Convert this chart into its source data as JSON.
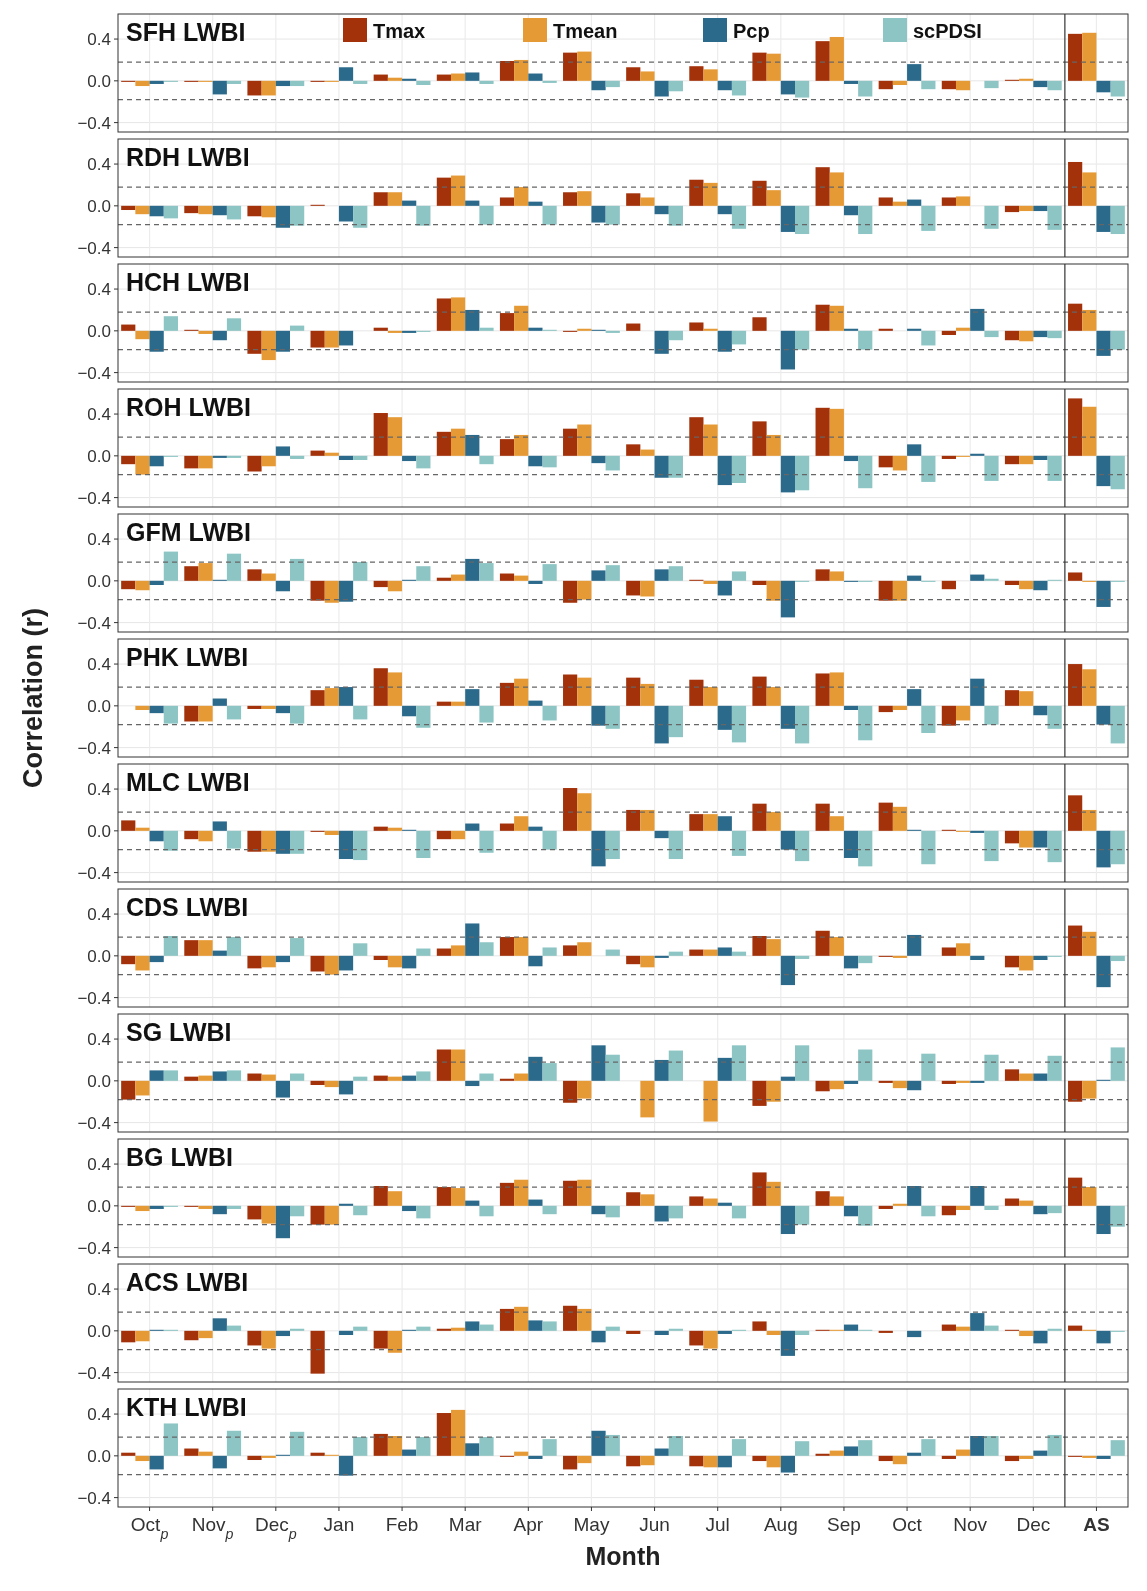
{
  "chart_data": [
    {
      "type": "bar",
      "title": "SFH LWBI",
      "legend": "top",
      "tick_labels": "y",
      "grid": true,
      "ylim": [
        -0.49,
        0.64
      ],
      "yticks": [
        {
          "value": -0.4,
          "label": "−0.4"
        },
        {
          "value": 0,
          "label": "0.0"
        },
        {
          "value": 0.4,
          "label": "0.4"
        }
      ],
      "categories": [
        "Oct$_{p}$",
        "Nov$_{p}$",
        "Dec$_{p}$",
        "Jan",
        "Feb",
        "Mar",
        "Apr",
        "May",
        "Jun",
        "Jul",
        "Aug",
        "Sep",
        "Oct",
        "Nov",
        "Dec",
        "AS"
      ],
      "ref_lines": [
        {
          "axis": "y",
          "value": 0.18,
          "line_style": "dashed"
        },
        {
          "axis": "y",
          "value": -0.18,
          "line_style": "dashed"
        },
        {
          "axis": "x",
          "value": "AS",
          "line_style": "solid"
        }
      ],
      "series": [
        {
          "name": "Tmax",
          "color": "#a3320b",
          "values": [
            -0.01,
            -0.01,
            -0.14,
            -0.01,
            0.06,
            0.06,
            0.19,
            0.27,
            0.13,
            0.14,
            0.27,
            0.38,
            -0.08,
            -0.08,
            0.01,
            0.45
          ]
        },
        {
          "name": "Tmean",
          "color": "#e69a35",
          "values": [
            -0.05,
            -0.01,
            -0.14,
            -0.01,
            0.03,
            0.07,
            0.2,
            0.28,
            0.09,
            0.11,
            0.26,
            0.42,
            -0.04,
            -0.09,
            0.02,
            0.46
          ]
        },
        {
          "name": "Pcp",
          "color": "#2c6a8c",
          "values": [
            -0.03,
            -0.13,
            -0.05,
            0.13,
            0.02,
            0.08,
            0.07,
            -0.09,
            -0.15,
            -0.09,
            -0.13,
            -0.03,
            0.16,
            0.0,
            -0.06,
            -0.11
          ]
        },
        {
          "name": "scPDSI",
          "color": "#8cc5c4",
          "values": [
            -0.01,
            -0.03,
            -0.05,
            -0.03,
            -0.04,
            -0.03,
            -0.02,
            -0.06,
            -0.1,
            -0.14,
            -0.16,
            -0.15,
            -0.08,
            -0.07,
            -0.09,
            -0.15
          ]
        }
      ]
    },
    {
      "type": "bar",
      "title": "RDH LWBI",
      "tick_labels": "y",
      "grid": true,
      "ylim": [
        -0.49,
        0.64
      ],
      "yticks": [
        {
          "value": -0.4,
          "label": "−0.4"
        },
        {
          "value": 0,
          "label": "0.0"
        },
        {
          "value": 0.4,
          "label": "0.4"
        }
      ],
      "categories": [
        "Oct$_{p}$",
        "Nov$_{p}$",
        "Dec$_{p}$",
        "Jan",
        "Feb",
        "Mar",
        "Apr",
        "May",
        "Jun",
        "Jul",
        "Aug",
        "Sep",
        "Oct",
        "Nov",
        "Dec",
        "AS"
      ],
      "ref_lines": [
        {
          "axis": "y",
          "value": 0.18,
          "line_style": "dashed"
        },
        {
          "axis": "y",
          "value": -0.18,
          "line_style": "dashed"
        },
        {
          "axis": "x",
          "value": "AS",
          "line_style": "solid"
        }
      ],
      "series": [
        {
          "color": "#a3320b",
          "values": [
            -0.04,
            -0.07,
            -0.1,
            0.01,
            0.13,
            0.27,
            0.08,
            0.13,
            0.12,
            0.25,
            0.24,
            0.37,
            0.08,
            0.08,
            -0.06,
            0.42
          ]
        },
        {
          "color": "#e69a35",
          "values": [
            -0.08,
            -0.08,
            -0.11,
            0.0,
            0.13,
            0.29,
            0.18,
            0.14,
            0.08,
            0.22,
            0.15,
            0.32,
            0.04,
            0.09,
            -0.05,
            0.32
          ]
        },
        {
          "color": "#2c6a8c",
          "values": [
            -0.1,
            -0.09,
            -0.21,
            -0.15,
            0.05,
            0.05,
            0.04,
            -0.16,
            -0.08,
            -0.08,
            -0.25,
            -0.09,
            0.06,
            0.0,
            -0.05,
            -0.25
          ]
        },
        {
          "color": "#8cc5c4",
          "values": [
            -0.12,
            -0.13,
            -0.19,
            -0.21,
            -0.19,
            -0.18,
            -0.18,
            -0.18,
            -0.19,
            -0.22,
            -0.27,
            -0.27,
            -0.24,
            -0.22,
            -0.23,
            -0.27
          ]
        }
      ]
    },
    {
      "type": "bar",
      "title": "HCH LWBI",
      "tick_labels": "y",
      "grid": true,
      "ylim": [
        -0.49,
        0.64
      ],
      "yticks": [
        {
          "value": -0.4,
          "label": "−0.4"
        },
        {
          "value": 0,
          "label": "0.0"
        },
        {
          "value": 0.4,
          "label": "0.4"
        }
      ],
      "categories": [
        "Oct$_{p}$",
        "Nov$_{p}$",
        "Dec$_{p}$",
        "Jan",
        "Feb",
        "Mar",
        "Apr",
        "May",
        "Jun",
        "Jul",
        "Aug",
        "Sep",
        "Oct",
        "Nov",
        "Dec",
        "AS"
      ],
      "ref_lines": [
        {
          "axis": "y",
          "value": 0.18,
          "line_style": "dashed"
        },
        {
          "axis": "y",
          "value": -0.18,
          "line_style": "dashed"
        },
        {
          "axis": "x",
          "value": "AS",
          "line_style": "solid"
        }
      ],
      "series": [
        {
          "color": "#a3320b",
          "values": [
            0.06,
            0.01,
            -0.22,
            -0.16,
            0.03,
            0.31,
            0.17,
            -0.01,
            0.07,
            0.08,
            0.13,
            0.25,
            0.02,
            -0.04,
            -0.09,
            0.26
          ]
        },
        {
          "color": "#e69a35",
          "values": [
            -0.08,
            -0.03,
            -0.28,
            -0.16,
            -0.02,
            0.32,
            0.24,
            0.02,
            0.0,
            0.02,
            0.0,
            0.24,
            0.0,
            0.03,
            -0.1,
            0.2
          ]
        },
        {
          "color": "#2c6a8c",
          "values": [
            -0.2,
            -0.09,
            -0.2,
            -0.14,
            -0.02,
            0.2,
            0.03,
            0.01,
            -0.22,
            -0.2,
            -0.37,
            0.02,
            0.02,
            0.21,
            -0.06,
            -0.24
          ]
        },
        {
          "color": "#8cc5c4",
          "values": [
            0.14,
            0.12,
            0.05,
            0.0,
            -0.01,
            0.03,
            0.01,
            -0.02,
            -0.09,
            -0.13,
            -0.18,
            -0.18,
            -0.14,
            -0.06,
            -0.07,
            -0.18
          ]
        }
      ]
    },
    {
      "type": "bar",
      "title": "ROH LWBI",
      "tick_labels": "y",
      "grid": true,
      "ylim": [
        -0.49,
        0.64
      ],
      "yticks": [
        {
          "value": -0.4,
          "label": "−0.4"
        },
        {
          "value": 0,
          "label": "0.0"
        },
        {
          "value": 0.4,
          "label": "0.4"
        }
      ],
      "categories": [
        "Oct$_{p}$",
        "Nov$_{p}$",
        "Dec$_{p}$",
        "Jan",
        "Feb",
        "Mar",
        "Apr",
        "May",
        "Jun",
        "Jul",
        "Aug",
        "Sep",
        "Oct",
        "Nov",
        "Dec",
        "AS"
      ],
      "ref_lines": [
        {
          "axis": "y",
          "value": 0.18,
          "line_style": "dashed"
        },
        {
          "axis": "y",
          "value": -0.18,
          "line_style": "dashed"
        },
        {
          "axis": "x",
          "value": "AS",
          "line_style": "solid"
        }
      ],
      "series": [
        {
          "color": "#a3320b",
          "values": [
            -0.08,
            -0.12,
            -0.15,
            0.05,
            0.41,
            0.23,
            0.16,
            0.26,
            0.11,
            0.37,
            0.33,
            0.46,
            -0.11,
            -0.03,
            -0.08,
            0.55
          ]
        },
        {
          "color": "#e69a35",
          "values": [
            -0.18,
            -0.12,
            -0.1,
            0.03,
            0.37,
            0.26,
            0.2,
            0.3,
            0.06,
            0.3,
            0.2,
            0.45,
            -0.14,
            -0.01,
            -0.08,
            0.47
          ]
        },
        {
          "color": "#2c6a8c",
          "values": [
            -0.1,
            -0.02,
            0.09,
            -0.04,
            -0.05,
            0.2,
            -0.1,
            -0.07,
            -0.21,
            -0.28,
            -0.35,
            -0.05,
            0.11,
            0.02,
            -0.04,
            -0.29
          ]
        },
        {
          "color": "#8cc5c4",
          "values": [
            -0.01,
            -0.02,
            -0.03,
            -0.04,
            -0.12,
            -0.08,
            -0.11,
            -0.14,
            -0.21,
            -0.26,
            -0.33,
            -0.31,
            -0.25,
            -0.24,
            -0.24,
            -0.32
          ]
        }
      ]
    },
    {
      "type": "bar",
      "title": "GFM LWBI",
      "tick_labels": "y",
      "grid": true,
      "ylim": [
        -0.49,
        0.64
      ],
      "yticks": [
        {
          "value": -0.4,
          "label": "−0.4"
        },
        {
          "value": 0,
          "label": "0.0"
        },
        {
          "value": 0.4,
          "label": "0.4"
        }
      ],
      "categories": [
        "Oct$_{p}$",
        "Nov$_{p}$",
        "Dec$_{p}$",
        "Jan",
        "Feb",
        "Mar",
        "Apr",
        "May",
        "Jun",
        "Jul",
        "Aug",
        "Sep",
        "Oct",
        "Nov",
        "Dec",
        "AS"
      ],
      "ref_lines": [
        {
          "axis": "y",
          "value": 0.18,
          "line_style": "dashed"
        },
        {
          "axis": "y",
          "value": -0.18,
          "line_style": "dashed"
        },
        {
          "axis": "x",
          "value": "AS",
          "line_style": "solid"
        }
      ],
      "series": [
        {
          "color": "#a3320b",
          "values": [
            -0.08,
            0.14,
            0.11,
            -0.19,
            -0.06,
            0.03,
            0.07,
            -0.21,
            -0.14,
            0.01,
            -0.04,
            0.11,
            -0.19,
            -0.08,
            -0.04,
            0.08
          ]
        },
        {
          "color": "#e69a35",
          "values": [
            -0.09,
            0.17,
            0.07,
            -0.21,
            -0.1,
            0.06,
            0.05,
            -0.18,
            -0.15,
            -0.03,
            -0.19,
            0.09,
            -0.19,
            0.0,
            -0.08,
            -0.01
          ]
        },
        {
          "color": "#2c6a8c",
          "values": [
            -0.04,
            0.01,
            -0.1,
            -0.2,
            0.01,
            0.21,
            -0.03,
            0.1,
            0.11,
            -0.14,
            -0.35,
            -0.01,
            0.05,
            0.06,
            -0.09,
            -0.25
          ]
        },
        {
          "color": "#8cc5c4",
          "values": [
            0.28,
            0.26,
            0.21,
            0.18,
            0.14,
            0.17,
            0.16,
            0.15,
            0.14,
            0.09,
            -0.01,
            -0.01,
            -0.01,
            0.02,
            0.01,
            -0.01
          ]
        }
      ]
    },
    {
      "type": "bar",
      "title": "PHK LWBI",
      "ylabel": "Correlation (r)",
      "tick_labels": "y",
      "grid": true,
      "ylim": [
        -0.49,
        0.64
      ],
      "yticks": [
        {
          "value": -0.4,
          "label": "−0.4"
        },
        {
          "value": 0,
          "label": "0.0"
        },
        {
          "value": 0.4,
          "label": "0.4"
        }
      ],
      "categories": [
        "Oct$_{p}$",
        "Nov$_{p}$",
        "Dec$_{p}$",
        "Jan",
        "Feb",
        "Mar",
        "Apr",
        "May",
        "Jun",
        "Jul",
        "Aug",
        "Sep",
        "Oct",
        "Nov",
        "Dec",
        "AS"
      ],
      "ref_lines": [
        {
          "axis": "y",
          "value": 0.18,
          "line_style": "dashed"
        },
        {
          "axis": "y",
          "value": -0.18,
          "line_style": "dashed"
        },
        {
          "axis": "x",
          "value": "AS",
          "line_style": "solid"
        }
      ],
      "series": [
        {
          "color": "#a3320b",
          "values": [
            0.0,
            -0.15,
            -0.03,
            0.15,
            0.36,
            0.04,
            0.22,
            0.3,
            0.27,
            0.25,
            0.28,
            0.31,
            -0.06,
            -0.19,
            0.15,
            0.4
          ]
        },
        {
          "color": "#e69a35",
          "values": [
            -0.04,
            -0.15,
            -0.03,
            0.17,
            0.32,
            0.04,
            0.26,
            0.27,
            0.21,
            0.18,
            0.18,
            0.32,
            -0.04,
            -0.14,
            0.14,
            0.35
          ]
        },
        {
          "color": "#2c6a8c",
          "values": [
            -0.07,
            0.07,
            -0.07,
            0.18,
            -0.1,
            0.16,
            0.05,
            -0.19,
            -0.36,
            -0.23,
            -0.22,
            -0.04,
            0.16,
            0.26,
            -0.09,
            -0.18
          ]
        },
        {
          "color": "#8cc5c4",
          "values": [
            -0.17,
            -0.13,
            -0.17,
            -0.13,
            -0.21,
            -0.16,
            -0.14,
            -0.22,
            -0.3,
            -0.35,
            -0.36,
            -0.33,
            -0.26,
            -0.18,
            -0.22,
            -0.36
          ]
        }
      ]
    },
    {
      "type": "bar",
      "title": "MLC LWBI",
      "tick_labels": "y",
      "grid": true,
      "ylim": [
        -0.49,
        0.64
      ],
      "yticks": [
        {
          "value": -0.4,
          "label": "−0.4"
        },
        {
          "value": 0,
          "label": "0.0"
        },
        {
          "value": 0.4,
          "label": "0.4"
        }
      ],
      "categories": [
        "Oct$_{p}$",
        "Nov$_{p}$",
        "Dec$_{p}$",
        "Jan",
        "Feb",
        "Mar",
        "Apr",
        "May",
        "Jun",
        "Jul",
        "Aug",
        "Sep",
        "Oct",
        "Nov",
        "Dec",
        "AS"
      ],
      "ref_lines": [
        {
          "axis": "y",
          "value": 0.18,
          "line_style": "dashed"
        },
        {
          "axis": "y",
          "value": -0.18,
          "line_style": "dashed"
        },
        {
          "axis": "x",
          "value": "AS",
          "line_style": "solid"
        }
      ],
      "series": [
        {
          "color": "#a3320b",
          "values": [
            0.1,
            -0.08,
            -0.2,
            -0.01,
            0.04,
            -0.08,
            0.07,
            0.41,
            0.2,
            0.16,
            0.26,
            0.26,
            0.27,
            0.01,
            -0.12,
            0.34
          ]
        },
        {
          "color": "#e69a35",
          "values": [
            0.03,
            -0.1,
            -0.2,
            -0.04,
            0.03,
            -0.08,
            0.14,
            0.36,
            0.2,
            0.16,
            0.18,
            0.14,
            0.23,
            -0.01,
            -0.16,
            0.2
          ]
        },
        {
          "color": "#2c6a8c",
          "values": [
            -0.1,
            0.09,
            -0.22,
            -0.27,
            0.01,
            0.07,
            0.04,
            -0.34,
            -0.07,
            0.14,
            -0.18,
            -0.26,
            0.01,
            -0.02,
            -0.16,
            -0.35
          ]
        },
        {
          "color": "#8cc5c4",
          "values": [
            -0.19,
            -0.17,
            -0.22,
            -0.28,
            -0.26,
            -0.21,
            -0.18,
            -0.27,
            -0.27,
            -0.24,
            -0.29,
            -0.34,
            -0.32,
            -0.29,
            -0.3,
            -0.32
          ]
        }
      ]
    },
    {
      "type": "bar",
      "title": "CDS LWBI",
      "tick_labels": "y",
      "grid": true,
      "ylim": [
        -0.49,
        0.64
      ],
      "yticks": [
        {
          "value": -0.4,
          "label": "−0.4"
        },
        {
          "value": 0,
          "label": "0.0"
        },
        {
          "value": 0.4,
          "label": "0.4"
        }
      ],
      "categories": [
        "Oct$_{p}$",
        "Nov$_{p}$",
        "Dec$_{p}$",
        "Jan",
        "Feb",
        "Mar",
        "Apr",
        "May",
        "Jun",
        "Jul",
        "Aug",
        "Sep",
        "Oct",
        "Nov",
        "Dec",
        "AS"
      ],
      "ref_lines": [
        {
          "axis": "y",
          "value": 0.18,
          "line_style": "dashed"
        },
        {
          "axis": "y",
          "value": -0.18,
          "line_style": "dashed"
        },
        {
          "axis": "x",
          "value": "AS",
          "line_style": "solid"
        }
      ],
      "series": [
        {
          "color": "#a3320b",
          "values": [
            -0.08,
            0.15,
            -0.12,
            -0.15,
            -0.04,
            0.07,
            0.18,
            0.1,
            -0.08,
            0.06,
            0.19,
            0.24,
            -0.01,
            0.08,
            -0.11,
            0.29
          ]
        },
        {
          "color": "#e69a35",
          "values": [
            -0.14,
            0.15,
            -0.11,
            -0.18,
            -0.11,
            0.1,
            0.18,
            0.13,
            -0.11,
            0.06,
            0.16,
            0.18,
            -0.02,
            0.12,
            -0.14,
            0.23
          ]
        },
        {
          "color": "#2c6a8c",
          "values": [
            -0.06,
            0.05,
            -0.06,
            -0.14,
            -0.12,
            0.31,
            -0.1,
            0.0,
            -0.02,
            0.08,
            -0.28,
            -0.12,
            0.2,
            -0.04,
            -0.04,
            -0.3
          ]
        },
        {
          "color": "#8cc5c4",
          "values": [
            0.19,
            0.18,
            0.17,
            0.12,
            0.07,
            0.13,
            0.08,
            0.06,
            0.04,
            0.04,
            -0.03,
            -0.07,
            0.0,
            0.0,
            -0.01,
            -0.05
          ]
        }
      ]
    },
    {
      "type": "bar",
      "title": "SG LWBI",
      "tick_labels": "y",
      "grid": true,
      "ylim": [
        -0.49,
        0.64
      ],
      "yticks": [
        {
          "value": -0.4,
          "label": "−0.4"
        },
        {
          "value": 0,
          "label": "0.0"
        },
        {
          "value": 0.4,
          "label": "0.4"
        }
      ],
      "categories": [
        "Oct$_{p}$",
        "Nov$_{p}$",
        "Dec$_{p}$",
        "Jan",
        "Feb",
        "Mar",
        "Apr",
        "May",
        "Jun",
        "Jul",
        "Aug",
        "Sep",
        "Oct",
        "Nov",
        "Dec",
        "AS"
      ],
      "ref_lines": [
        {
          "axis": "y",
          "value": 0.18,
          "line_style": "dashed"
        },
        {
          "axis": "y",
          "value": -0.18,
          "line_style": "dashed"
        },
        {
          "axis": "x",
          "value": "AS",
          "line_style": "solid"
        }
      ],
      "series": [
        {
          "color": "#a3320b",
          "values": [
            -0.18,
            0.04,
            0.07,
            -0.04,
            0.05,
            0.3,
            0.02,
            -0.21,
            0.0,
            0.0,
            -0.24,
            -0.1,
            -0.02,
            -0.03,
            0.11,
            -0.2
          ]
        },
        {
          "color": "#e69a35",
          "values": [
            -0.14,
            0.05,
            0.06,
            -0.06,
            0.04,
            0.3,
            0.07,
            -0.17,
            -0.35,
            -0.39,
            -0.2,
            -0.08,
            -0.07,
            -0.02,
            0.07,
            -0.17
          ]
        },
        {
          "color": "#2c6a8c",
          "values": [
            0.1,
            0.09,
            -0.16,
            -0.13,
            0.05,
            -0.05,
            0.23,
            0.34,
            0.2,
            0.22,
            0.04,
            -0.03,
            -0.09,
            -0.02,
            0.07,
            0.01
          ]
        },
        {
          "color": "#8cc5c4",
          "values": [
            0.1,
            0.1,
            0.07,
            0.04,
            0.09,
            0.07,
            0.17,
            0.25,
            0.29,
            0.34,
            0.34,
            0.3,
            0.26,
            0.25,
            0.24,
            0.32
          ]
        }
      ]
    },
    {
      "type": "bar",
      "title": "BG LWBI",
      "tick_labels": "y",
      "grid": true,
      "ylim": [
        -0.49,
        0.64
      ],
      "yticks": [
        {
          "value": -0.4,
          "label": "−0.4"
        },
        {
          "value": 0,
          "label": "0.0"
        },
        {
          "value": 0.4,
          "label": "0.4"
        }
      ],
      "categories": [
        "Oct$_{p}$",
        "Nov$_{p}$",
        "Dec$_{p}$",
        "Jan",
        "Feb",
        "Mar",
        "Apr",
        "May",
        "Jun",
        "Jul",
        "Aug",
        "Sep",
        "Oct",
        "Nov",
        "Dec",
        "AS"
      ],
      "ref_lines": [
        {
          "axis": "y",
          "value": 0.18,
          "line_style": "dashed"
        },
        {
          "axis": "y",
          "value": -0.18,
          "line_style": "dashed"
        },
        {
          "axis": "x",
          "value": "AS",
          "line_style": "solid"
        }
      ],
      "series": [
        {
          "color": "#a3320b",
          "values": [
            -0.01,
            -0.01,
            -0.13,
            -0.18,
            0.19,
            0.18,
            0.22,
            0.24,
            0.13,
            0.09,
            0.32,
            0.14,
            -0.03,
            -0.09,
            0.07,
            0.27
          ]
        },
        {
          "color": "#e69a35",
          "values": [
            -0.05,
            -0.03,
            -0.17,
            -0.18,
            0.14,
            0.17,
            0.25,
            0.25,
            0.11,
            0.07,
            0.23,
            0.09,
            0.02,
            -0.04,
            0.05,
            0.18
          ]
        },
        {
          "color": "#2c6a8c",
          "values": [
            -0.03,
            -0.08,
            -0.31,
            0.02,
            -0.05,
            0.05,
            0.06,
            -0.08,
            -0.15,
            0.03,
            -0.27,
            -0.1,
            0.19,
            0.19,
            -0.08,
            -0.27
          ]
        },
        {
          "color": "#8cc5c4",
          "values": [
            -0.01,
            -0.03,
            -0.1,
            -0.09,
            -0.12,
            -0.1,
            -0.08,
            -0.11,
            -0.12,
            -0.12,
            -0.18,
            -0.19,
            -0.1,
            -0.04,
            -0.07,
            -0.2
          ]
        }
      ]
    },
    {
      "type": "bar",
      "title": "ACS LWBI",
      "tick_labels": "y",
      "grid": true,
      "ylim": [
        -0.49,
        0.64
      ],
      "yticks": [
        {
          "value": -0.4,
          "label": "−0.4"
        },
        {
          "value": 0,
          "label": "0.0"
        },
        {
          "value": 0.4,
          "label": "0.4"
        }
      ],
      "categories": [
        "Oct$_{p}$",
        "Nov$_{p}$",
        "Dec$_{p}$",
        "Jan",
        "Feb",
        "Mar",
        "Apr",
        "May",
        "Jun",
        "Jul",
        "Aug",
        "Sep",
        "Oct",
        "Nov",
        "Dec",
        "AS"
      ],
      "ref_lines": [
        {
          "axis": "y",
          "value": 0.18,
          "line_style": "dashed"
        },
        {
          "axis": "y",
          "value": -0.18,
          "line_style": "dashed"
        },
        {
          "axis": "x",
          "value": "AS",
          "line_style": "solid"
        }
      ],
      "series": [
        {
          "color": "#a3320b",
          "values": [
            -0.11,
            -0.09,
            -0.14,
            -0.41,
            -0.17,
            0.02,
            0.21,
            0.24,
            -0.03,
            -0.14,
            0.09,
            0.01,
            -0.02,
            0.06,
            0.01,
            0.05
          ]
        },
        {
          "color": "#e69a35",
          "values": [
            -0.1,
            -0.07,
            -0.17,
            0.0,
            -0.21,
            0.03,
            0.23,
            0.21,
            0.0,
            -0.17,
            -0.04,
            0.01,
            0.0,
            0.04,
            -0.05,
            0.01
          ]
        },
        {
          "color": "#2c6a8c",
          "values": [
            0.01,
            0.12,
            -0.05,
            -0.04,
            0.01,
            0.09,
            0.1,
            -0.11,
            -0.04,
            -0.03,
            -0.24,
            0.06,
            -0.06,
            0.17,
            -0.12,
            -0.12
          ]
        },
        {
          "color": "#8cc5c4",
          "values": [
            0.01,
            0.05,
            0.02,
            0.04,
            0.04,
            0.06,
            0.09,
            0.04,
            0.02,
            0.01,
            -0.04,
            0.01,
            0.0,
            0.05,
            0.02,
            -0.01
          ]
        }
      ]
    },
    {
      "type": "bar",
      "title": "KTH LWBI",
      "xlabel": "Month",
      "grid": true,
      "ylim": [
        -0.49,
        0.64
      ],
      "yticks": [
        {
          "value": -0.4,
          "label": "−0.4"
        },
        {
          "value": 0,
          "label": "0.0"
        },
        {
          "value": 0.4,
          "label": "0.4"
        }
      ],
      "categories": [
        "Oct$_{p}$",
        "Nov$_{p}$",
        "Dec$_{p}$",
        "Jan",
        "Feb",
        "Mar",
        "Apr",
        "May",
        "Jun",
        "Jul",
        "Aug",
        "Sep",
        "Oct",
        "Nov",
        "Dec",
        "AS"
      ],
      "ref_lines": [
        {
          "axis": "y",
          "value": 0.18,
          "line_style": "dashed"
        },
        {
          "axis": "y",
          "value": -0.18,
          "line_style": "dashed"
        },
        {
          "axis": "x",
          "value": "AS",
          "line_style": "solid"
        }
      ],
      "series": [
        {
          "color": "#a3320b",
          "values": [
            0.03,
            0.07,
            -0.04,
            0.03,
            0.21,
            0.41,
            -0.01,
            -0.13,
            -0.1,
            -0.1,
            -0.05,
            0.02,
            -0.05,
            -0.03,
            -0.05,
            -0.01
          ]
        },
        {
          "color": "#e69a35",
          "values": [
            -0.05,
            0.04,
            -0.02,
            0.01,
            0.19,
            0.44,
            0.04,
            -0.07,
            -0.09,
            -0.11,
            -0.11,
            0.05,
            -0.08,
            0.06,
            -0.03,
            -0.02
          ]
        },
        {
          "color": "#2c6a8c",
          "values": [
            -0.13,
            -0.12,
            0.01,
            -0.19,
            0.06,
            0.12,
            -0.03,
            0.24,
            0.07,
            -0.11,
            -0.16,
            0.09,
            0.03,
            0.19,
            0.05,
            -0.03
          ]
        },
        {
          "color": "#8cc5c4",
          "values": [
            0.31,
            0.24,
            0.23,
            0.18,
            0.18,
            0.18,
            0.16,
            0.2,
            0.19,
            0.16,
            0.14,
            0.15,
            0.16,
            0.19,
            0.2,
            0.15
          ]
        }
      ]
    }
  ]
}
